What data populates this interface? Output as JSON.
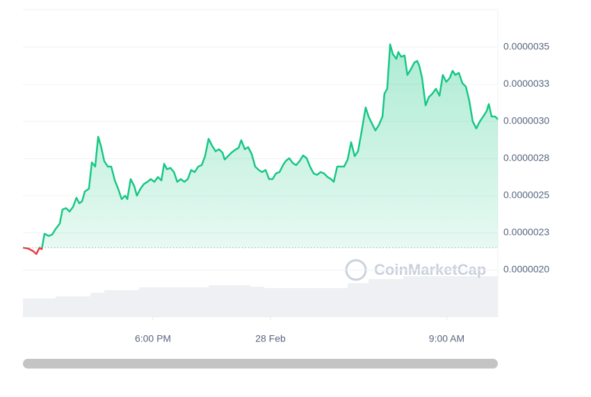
{
  "chart_data": {
    "type": "line",
    "watermark": "CoinMarketCap",
    "x": [
      11.36,
      11.61,
      11.89,
      12.04,
      12.21,
      12.32,
      12.46,
      12.67,
      12.85,
      13.03,
      13.24,
      13.38,
      13.56,
      13.74,
      13.92,
      14.09,
      14.24,
      14.38,
      14.52,
      14.73,
      14.88,
      15.05,
      15.2,
      15.34,
      15.51,
      15.69,
      15.87,
      16.05,
      16.22,
      16.4,
      16.58,
      16.69,
      16.86,
      17.04,
      17.18,
      17.36,
      17.54,
      17.72,
      17.89,
      18.07,
      18.25,
      18.43,
      18.57,
      18.71,
      18.89,
      19.07,
      19.24,
      19.42,
      19.6,
      19.78,
      19.95,
      20.13,
      20.31,
      20.49,
      20.66,
      20.84,
      21.02,
      21.2,
      21.37,
      21.55,
      21.66,
      21.83,
      22.01,
      22.19,
      22.37,
      22.51,
      22.69,
      22.86,
      23.04,
      23.22,
      23.4,
      23.57,
      23.75,
      23.93,
      24.11,
      24.28,
      24.46,
      24.64,
      24.78,
      24.96,
      25.14,
      25.31,
      25.49,
      25.67,
      25.85,
      26.02,
      26.2,
      26.38,
      26.56,
      26.73,
      26.91,
      27.09,
      27.23,
      27.41,
      27.59,
      27.76,
      27.94,
      28.12,
      28.3,
      28.47,
      28.65,
      28.86,
      29.01,
      29.18,
      29.36,
      29.54,
      29.72,
      29.82,
      29.96,
      30.11,
      30.25,
      30.43,
      30.53,
      30.67,
      30.85,
      30.99,
      31.17,
      31.35,
      31.49,
      31.6,
      31.74,
      31.92,
      32.09,
      32.27,
      32.45,
      32.63,
      32.8,
      32.98,
      33.16,
      33.3,
      33.44,
      33.62,
      33.8,
      33.98,
      34.15,
      34.33,
      34.51,
      34.69,
      34.86,
      35.04,
      35.15,
      35.29,
      35.47,
      35.61
    ],
    "series": [
      {
        "color": "#16c784",
        "below_color": "#ea3943",
        "values": [
          2.15e-06,
          2.145e-06,
          2.126e-06,
          2.107e-06,
          2.15e-06,
          2.14e-06,
          2.243e-06,
          2.229e-06,
          2.238e-06,
          2.276e-06,
          2.313e-06,
          2.407e-06,
          2.416e-06,
          2.393e-06,
          2.425e-06,
          2.486e-06,
          2.449e-06,
          2.463e-06,
          2.528e-06,
          2.547e-06,
          2.724e-06,
          2.696e-06,
          2.897e-06,
          2.836e-06,
          2.734e-06,
          2.696e-06,
          2.696e-06,
          2.603e-06,
          2.547e-06,
          2.477e-06,
          2.5e-06,
          2.477e-06,
          2.612e-06,
          2.565e-06,
          2.5e-06,
          2.547e-06,
          2.579e-06,
          2.593e-06,
          2.612e-06,
          2.593e-06,
          2.626e-06,
          2.603e-06,
          2.715e-06,
          2.678e-06,
          2.687e-06,
          2.659e-06,
          2.593e-06,
          2.612e-06,
          2.593e-06,
          2.612e-06,
          2.673e-06,
          2.659e-06,
          2.696e-06,
          2.706e-06,
          2.766e-06,
          2.883e-06,
          2.836e-06,
          2.799e-06,
          2.813e-06,
          2.79e-06,
          2.743e-06,
          2.766e-06,
          2.79e-06,
          2.808e-06,
          2.822e-06,
          2.874e-06,
          2.813e-06,
          2.827e-06,
          2.78e-06,
          2.696e-06,
          2.673e-06,
          2.659e-06,
          2.673e-06,
          2.612e-06,
          2.612e-06,
          2.65e-06,
          2.659e-06,
          2.706e-06,
          2.734e-06,
          2.752e-06,
          2.72e-06,
          2.706e-06,
          2.734e-06,
          2.771e-06,
          2.752e-06,
          2.696e-06,
          2.65e-06,
          2.64e-06,
          2.659e-06,
          2.65e-06,
          2.626e-06,
          2.612e-06,
          2.593e-06,
          2.696e-06,
          2.696e-06,
          2.696e-06,
          2.743e-06,
          2.86e-06,
          2.766e-06,
          2.799e-06,
          2.93e-06,
          3.094e-06,
          3.033e-06,
          2.986e-06,
          2.939e-06,
          2.977e-06,
          3.033e-06,
          3.187e-06,
          3.22e-06,
          3.519e-06,
          3.453e-06,
          3.421e-06,
          3.467e-06,
          3.435e-06,
          3.444e-06,
          3.313e-06,
          3.351e-06,
          3.397e-06,
          3.407e-06,
          3.374e-06,
          3.294e-06,
          3.108e-06,
          3.164e-06,
          3.187e-06,
          3.22e-06,
          3.173e-06,
          3.313e-06,
          3.266e-06,
          3.294e-06,
          3.341e-06,
          3.313e-06,
          3.327e-06,
          3.257e-06,
          3.234e-06,
          3.14e-06,
          3e-06,
          2.953e-06,
          3e-06,
          3.033e-06,
          3.07e-06,
          3.117e-06,
          3.033e-06,
          3.033e-06,
          3.014e-06
        ]
      }
    ],
    "baseline": 2.15e-06,
    "xlim": [
      11.36,
      35.61
    ],
    "xticks": [
      {
        "value": 18,
        "label": "6:00 PM"
      },
      {
        "value": 24,
        "label": "28 Feb"
      },
      {
        "value": 33,
        "label": "9:00 AM"
      }
    ],
    "ylim": [
      1.682e-06,
      3.752e-06
    ],
    "yticks": [
      {
        "value": 2e-06,
        "label": "0.0000020"
      },
      {
        "value": 2.25e-06,
        "label": "0.0000023"
      },
      {
        "value": 2.5e-06,
        "label": "0.0000025"
      },
      {
        "value": 2.75e-06,
        "label": "0.0000028"
      },
      {
        "value": 3e-06,
        "label": "0.0000030"
      },
      {
        "value": 3.25e-06,
        "label": "0.0000033"
      },
      {
        "value": 3.5e-06,
        "label": "0.0000035"
      }
    ],
    "grid": true
  }
}
